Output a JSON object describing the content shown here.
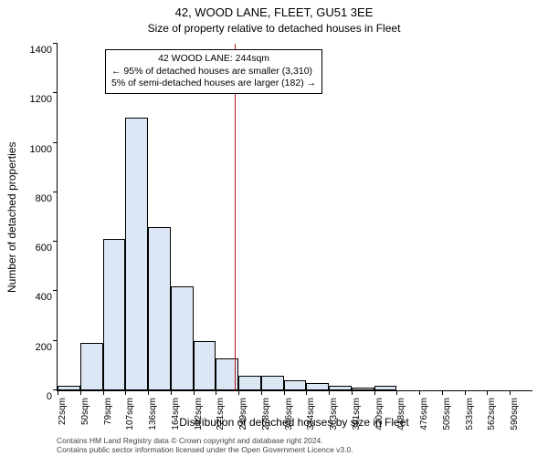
{
  "title_main": "42, WOOD LANE, FLEET, GU51 3EE",
  "title_sub": "Size of property relative to detached houses in Fleet",
  "ylabel": "Number of detached properties",
  "xlabel": "Distribution of detached houses by size in Fleet",
  "chart": {
    "type": "histogram",
    "ylim": [
      0,
      1400
    ],
    "ytick_step": 200,
    "bar_fill": "#dbe7f5",
    "bar_border": "#000000",
    "marker_color": "#b51a1a",
    "marker_x_sqm": 244,
    "x_bin_width_sqm": 28.4,
    "x_start_sqm": 22,
    "bars": [
      20,
      190,
      610,
      1100,
      660,
      420,
      200,
      130,
      60,
      60,
      40,
      30,
      20,
      10,
      20,
      0,
      0,
      0,
      0,
      0,
      0
    ],
    "x_tick_every": 1,
    "x_ticks": [
      "22sqm",
      "50sqm",
      "79sqm",
      "107sqm",
      "136sqm",
      "164sqm",
      "192sqm",
      "221sqm",
      "249sqm",
      "278sqm",
      "306sqm",
      "334sqm",
      "363sqm",
      "391sqm",
      "420sqm",
      "448sqm",
      "476sqm",
      "505sqm",
      "533sqm",
      "562sqm",
      "590sqm"
    ]
  },
  "annotation": {
    "line1": "42 WOOD LANE: 244sqm",
    "line2": "← 95% of detached houses are smaller (3,310)",
    "line3": "5% of semi-detached houses are larger (182) →"
  },
  "footer": {
    "line1": "Contains HM Land Registry data © Crown copyright and database right 2024.",
    "line2": "Contains public sector information licensed under the Open Government Licence v3.0."
  }
}
